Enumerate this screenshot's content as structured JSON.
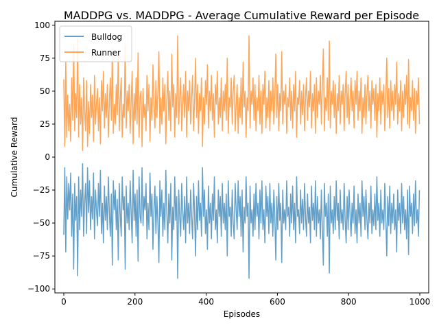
{
  "chart_data": {
    "type": "line",
    "title": "MADDPG vs. MADDPG - Average Cumulative Reward per Episode",
    "xlabel": "Episodes",
    "ylabel": "Cumulative Reward",
    "xlim": [
      -25,
      1025
    ],
    "ylim": [
      -103,
      103
    ],
    "xticks": [
      0,
      200,
      400,
      600,
      800,
      1000
    ],
    "yticks": [
      -100,
      -75,
      -50,
      -25,
      0,
      25,
      50,
      75,
      100
    ],
    "grid": false,
    "legend_position": "top-left",
    "episodes": [
      0,
      999
    ],
    "series_relation": "Runner = -Bulldog at every episode",
    "series": [
      {
        "name": "Bulldog",
        "color": "#1f77b4",
        "opacity": 0.7,
        "segment_values": [
          -59,
          -8,
          -72,
          -15,
          -47,
          -20,
          -40,
          -12,
          -60,
          -28,
          -85,
          -20,
          -48,
          -30,
          -90,
          -15,
          -55,
          -25,
          -45,
          -5,
          -60,
          -35,
          -20,
          -58,
          -8,
          -42,
          -18,
          -55,
          -30,
          -47,
          -12,
          -62,
          -25,
          -40,
          -52,
          -20,
          -45,
          -10,
          -58,
          -35,
          -65,
          -22,
          -48,
          -30,
          -55,
          -15,
          -42,
          -60,
          -28,
          -82,
          -18,
          -40,
          -25,
          -55,
          -32,
          -78,
          -20,
          -45,
          -60,
          -15,
          -40,
          -30,
          -85,
          -22,
          -50,
          -35,
          -55,
          -18,
          -42,
          -65,
          -10,
          -48,
          -28,
          -60,
          -25,
          -79,
          -15,
          -45,
          -50,
          -8,
          -52,
          -30,
          -40,
          -20,
          -62,
          -35,
          -55,
          -12,
          -45,
          -28,
          -70,
          -40,
          -22,
          -58,
          -30,
          -50,
          -80,
          -18,
          -45,
          -25,
          -60,
          -35,
          -55,
          -10,
          -42,
          -65,
          -28,
          -50,
          -20,
          -78,
          -38,
          -55,
          -15,
          -48,
          -30,
          -92,
          -25,
          -45,
          -60,
          -20,
          -40,
          -55,
          -30,
          -65,
          -15,
          -50,
          -35,
          -58,
          -25,
          -45,
          -62,
          -20,
          -42,
          -75,
          -30,
          -55,
          -18,
          -48,
          -35,
          -60,
          -8,
          -45,
          -25,
          -58,
          -40,
          -70,
          -22,
          -50,
          -35,
          -62,
          -28,
          -48,
          -15,
          -55,
          -40,
          -65,
          -25,
          -45,
          -30,
          -60,
          -20,
          -50,
          -35,
          -55,
          -28,
          -75,
          -18,
          -45,
          -38,
          -60,
          -25,
          -50,
          -62,
          -20,
          -40,
          -55,
          -18,
          -45,
          -30,
          -60,
          -25,
          -72,
          -38,
          -50,
          -15,
          -45,
          -35,
          -92,
          -22,
          -50,
          -40,
          -60,
          -28,
          -55,
          -20,
          -45,
          -35,
          -62,
          -25,
          -50,
          -18,
          -55,
          -40,
          -65,
          -22,
          -45,
          -30,
          -58,
          -20,
          -50,
          -35,
          -60,
          -25,
          -45,
          -78,
          -30,
          -55,
          -20,
          -48,
          -35,
          -80,
          -25,
          -50,
          -40,
          -55,
          -18,
          -45,
          -38,
          -60,
          -28,
          -50,
          -22,
          -55,
          -35,
          -65,
          -15,
          -45,
          -40,
          -58,
          -25,
          -50,
          -32,
          -55,
          -20,
          -45,
          -60,
          -28,
          -50,
          -38,
          -65,
          -22,
          -48,
          -35,
          -55,
          -18,
          -60,
          -30,
          -50,
          -40,
          -62,
          -25,
          -55,
          -82,
          -20,
          -45,
          -35,
          -60,
          -28,
          -88,
          -22,
          -50,
          -40,
          -58,
          -30,
          -55,
          -18,
          -48,
          -35,
          -62,
          -25,
          -50,
          -40,
          -55,
          -20,
          -48,
          -65,
          -30,
          -55,
          -25,
          -45,
          -60,
          -35,
          -50,
          -22,
          -58,
          -40,
          -65,
          -28,
          -50,
          -35,
          -60,
          -18,
          -45,
          -30,
          -55,
          -25,
          -48,
          -62,
          -35,
          -50,
          -22,
          -58,
          -40,
          -52,
          -28,
          -55,
          -15,
          -48,
          -35,
          -60,
          -25,
          -50,
          -40,
          -55,
          -20,
          -45,
          -75,
          -30,
          -52,
          -22,
          -58,
          -35,
          -50,
          -28,
          -55,
          -40,
          -72,
          -25,
          -48,
          -35,
          -58,
          -20,
          -50,
          -30,
          -55,
          -40,
          -62,
          -25,
          -74,
          -22,
          -45,
          -35,
          -58,
          -28,
          -52,
          -18,
          -50,
          -40,
          -60,
          -25
        ]
      },
      {
        "name": "Runner",
        "color": "#ff7f0e",
        "opacity": 0.7,
        "mirror_of": "Bulldog"
      }
    ]
  }
}
